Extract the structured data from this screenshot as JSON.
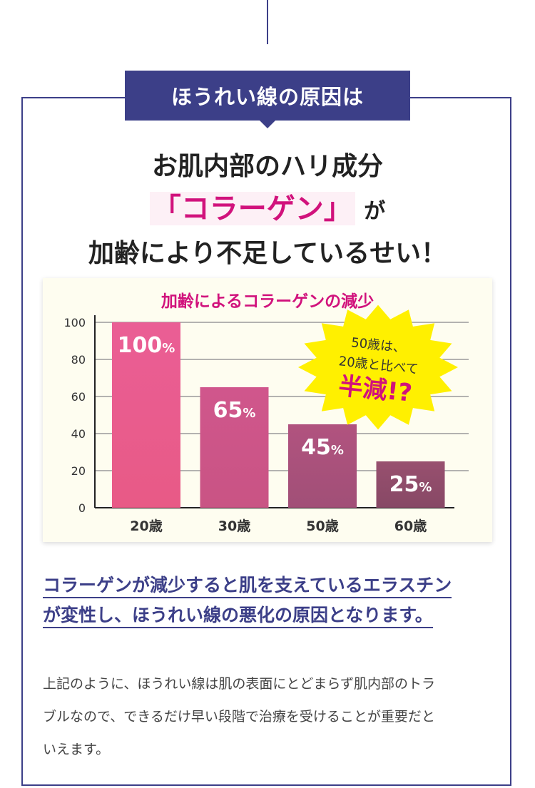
{
  "ribbon": {
    "label": "ほうれい線の原因は"
  },
  "headline": {
    "line1": "お肌内部のハリ成分",
    "collagen": "「コラーゲン」",
    "ga": "が",
    "line3": "加齢により不足しているせい！"
  },
  "chart_data": {
    "type": "bar",
    "title": "加齢によるコラーゲンの減少",
    "categories": [
      "20歳",
      "30歳",
      "50歳",
      "60歳"
    ],
    "values": [
      100,
      65,
      45,
      25
    ],
    "value_labels": [
      "100",
      "65",
      "45",
      "25"
    ],
    "value_unit": "%",
    "yticks": [
      "0",
      "20",
      "40",
      "60",
      "80",
      "100"
    ],
    "ylim": [
      0,
      100
    ],
    "grid": true,
    "bar_colors": [
      [
        "#ea5e95",
        "#e85a86"
      ],
      [
        "#d0568c",
        "#c95484"
      ],
      [
        "#b1537f",
        "#a14f77"
      ],
      [
        "#98506f",
        "#874865"
      ]
    ],
    "callout": {
      "line1": "50歳は、",
      "line2": "20歳と比べて",
      "emphasis": "半減!?"
    }
  },
  "summary": {
    "line1": "コラーゲンが減少すると肌を支えているエラスチン",
    "line2": "が変性し、ほうれい線の悪化の原因となります。"
  },
  "body": {
    "line1": "上記のように、ほうれい線は肌の表面にとどまらず肌内部のトラ",
    "line2": "ブルなので、できるだけ早い段階で治療を受けることが重要だと",
    "line3": "いえます。"
  },
  "colors": {
    "navy": "#3c3f88",
    "magenta": "#d1127c",
    "starburst": "#fff000"
  }
}
